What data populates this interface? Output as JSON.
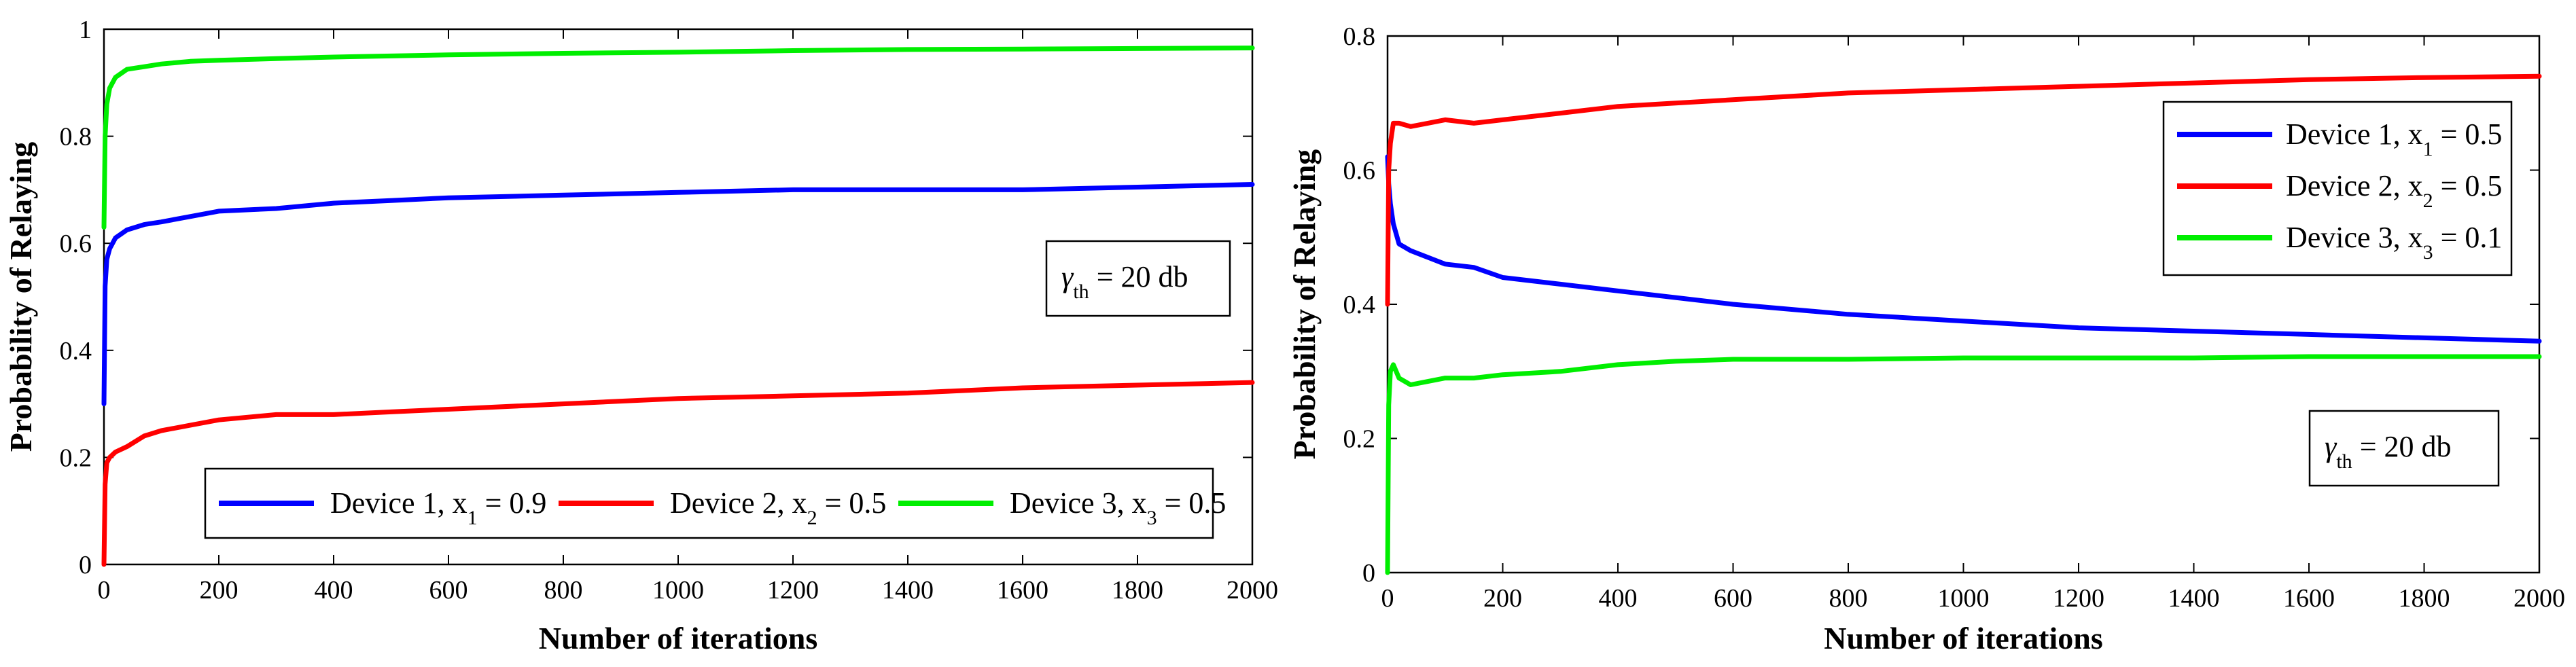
{
  "chart_data": [
    {
      "type": "line",
      "xlabel": "Number of iterations",
      "ylabel": "Probability of Relaying",
      "xlim": [
        0,
        2000
      ],
      "ylim": [
        0,
        1
      ],
      "xticks": [
        0,
        200,
        400,
        600,
        800,
        1000,
        1200,
        1400,
        1600,
        1800,
        2000
      ],
      "yticks": [
        0,
        0.2,
        0.4,
        0.6,
        0.8,
        1
      ],
      "ytick_labels": [
        "0",
        "0.2",
        "0.4",
        "0.6",
        "0.8",
        "1"
      ],
      "grid": false,
      "legend_position": "bottom, horizontal",
      "annotation": {
        "symbol": "γ",
        "subscript": "th",
        "text": " = 20 db",
        "position": "right"
      },
      "series": [
        {
          "name": "Device 1",
          "legend_label": {
            "prefix": "Device 1, x",
            "sub": "1",
            "suffix": " = 0.9"
          },
          "color": "#0000ff",
          "x": [
            0,
            2,
            5,
            10,
            20,
            40,
            70,
            100,
            150,
            200,
            300,
            400,
            500,
            600,
            800,
            1000,
            1200,
            1400,
            1600,
            1800,
            2000
          ],
          "y": [
            0.3,
            0.52,
            0.57,
            0.59,
            0.61,
            0.625,
            0.635,
            0.64,
            0.65,
            0.66,
            0.665,
            0.675,
            0.68,
            0.685,
            0.69,
            0.695,
            0.7,
            0.7,
            0.7,
            0.705,
            0.71
          ]
        },
        {
          "name": "Device 2",
          "legend_label": {
            "prefix": "Device 2, x",
            "sub": "2",
            "suffix": " = 0.5"
          },
          "color": "#ff0000",
          "x": [
            0,
            2,
            5,
            10,
            20,
            40,
            70,
            100,
            150,
            200,
            300,
            400,
            500,
            600,
            800,
            1000,
            1200,
            1400,
            1600,
            1800,
            2000
          ],
          "y": [
            0.0,
            0.15,
            0.19,
            0.2,
            0.21,
            0.22,
            0.24,
            0.25,
            0.26,
            0.27,
            0.28,
            0.28,
            0.285,
            0.29,
            0.3,
            0.31,
            0.315,
            0.32,
            0.33,
            0.335,
            0.34
          ]
        },
        {
          "name": "Device 3",
          "legend_label": {
            "prefix": "Device 3, x",
            "sub": "3",
            "suffix": " = 0.5"
          },
          "color": "#00ee00",
          "x": [
            0,
            2,
            5,
            10,
            20,
            40,
            70,
            100,
            150,
            200,
            300,
            400,
            500,
            600,
            800,
            1000,
            1200,
            1400,
            1600,
            1800,
            2000
          ],
          "y": [
            0.63,
            0.8,
            0.86,
            0.89,
            0.91,
            0.925,
            0.93,
            0.935,
            0.94,
            0.942,
            0.945,
            0.948,
            0.95,
            0.952,
            0.955,
            0.957,
            0.96,
            0.962,
            0.963,
            0.964,
            0.965
          ]
        }
      ]
    },
    {
      "type": "line",
      "xlabel": "Number of iterations",
      "ylabel": "Probability of Relaying",
      "xlim": [
        0,
        2000
      ],
      "ylim": [
        0,
        0.8
      ],
      "xticks": [
        0,
        200,
        400,
        600,
        800,
        1000,
        1200,
        1400,
        1600,
        1800,
        2000
      ],
      "yticks": [
        0,
        0.2,
        0.4,
        0.6,
        0.8
      ],
      "ytick_labels": [
        "0",
        "0.2",
        "0.4",
        "0.6",
        "0.8"
      ],
      "grid": false,
      "legend_position": "top-right, vertical",
      "annotation": {
        "symbol": "γ",
        "subscript": "th",
        "text": " = 20 db",
        "position": "bottom-right"
      },
      "series": [
        {
          "name": "Device 1",
          "legend_label": {
            "prefix": "Device 1,  x",
            "sub": "1",
            "suffix": " = 0.5"
          },
          "color": "#0000ff",
          "x": [
            0,
            2,
            5,
            10,
            20,
            40,
            70,
            100,
            150,
            200,
            300,
            400,
            500,
            600,
            800,
            1000,
            1200,
            1400,
            1600,
            1800,
            2000
          ],
          "y": [
            0.62,
            0.58,
            0.55,
            0.52,
            0.49,
            0.48,
            0.47,
            0.46,
            0.455,
            0.44,
            0.43,
            0.42,
            0.41,
            0.4,
            0.385,
            0.375,
            0.365,
            0.36,
            0.355,
            0.35,
            0.345
          ]
        },
        {
          "name": "Device 2",
          "legend_label": {
            "prefix": "Device 2,  x",
            "sub": "2",
            "suffix": " = 0.5"
          },
          "color": "#ff0000",
          "x": [
            0,
            2,
            5,
            10,
            20,
            40,
            70,
            100,
            150,
            200,
            300,
            400,
            500,
            600,
            800,
            1000,
            1200,
            1400,
            1600,
            1800,
            2000
          ],
          "y": [
            0.4,
            0.6,
            0.64,
            0.67,
            0.67,
            0.665,
            0.67,
            0.675,
            0.67,
            0.675,
            0.685,
            0.695,
            0.7,
            0.705,
            0.715,
            0.72,
            0.725,
            0.73,
            0.735,
            0.738,
            0.74
          ]
        },
        {
          "name": "Device 3",
          "legend_label": {
            "prefix": "Device 3,  x",
            "sub": "3",
            "suffix": " = 0.1"
          },
          "color": "#00ee00",
          "x": [
            0,
            2,
            5,
            10,
            20,
            40,
            70,
            100,
            150,
            200,
            300,
            400,
            500,
            600,
            800,
            1000,
            1200,
            1400,
            1600,
            1800,
            2000
          ],
          "y": [
            0.0,
            0.25,
            0.3,
            0.31,
            0.29,
            0.28,
            0.285,
            0.29,
            0.29,
            0.295,
            0.3,
            0.31,
            0.315,
            0.318,
            0.318,
            0.32,
            0.32,
            0.32,
            0.322,
            0.322,
            0.322
          ]
        }
      ]
    }
  ]
}
